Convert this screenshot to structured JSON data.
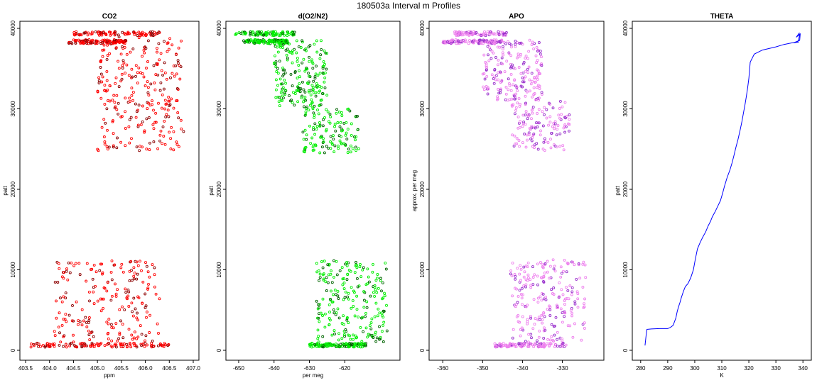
{
  "suptitle": "180503a   Interval m Profiles",
  "chart_data": [
    {
      "type": "scatter",
      "title": "CO2",
      "xlabel": "ppm",
      "ylabel": "patt",
      "xlim": [
        403.5,
        407.0
      ],
      "ylim": [
        0,
        40000
      ],
      "xticks": [
        403.5,
        404.0,
        404.5,
        405.0,
        405.5,
        406.0,
        406.5,
        407.0
      ],
      "xtick_labels": [
        "403.5",
        "404.0",
        "404.5",
        "405.0",
        "405.5",
        "406.0",
        "406.5",
        "407.0"
      ],
      "yticks": [
        0,
        10000,
        20000,
        30000,
        40000
      ],
      "ytick_labels": [
        "0",
        "10000",
        "20000",
        "30000",
        "40000"
      ],
      "colors": [
        "#ff0000",
        "#8b0000"
      ],
      "clusters": [
        {
          "x": [
            404.4,
            405.6
          ],
          "y": [
            38100,
            38600
          ],
          "n": 120
        },
        {
          "x": [
            404.5,
            406.3
          ],
          "y": [
            39100,
            39600
          ],
          "n": 90
        },
        {
          "x": [
            405.0,
            406.8
          ],
          "y": [
            24800,
            39000
          ],
          "n": 260
        },
        {
          "x": [
            403.6,
            406.5
          ],
          "y": [
            400,
            900
          ],
          "n": 120
        },
        {
          "x": [
            404.1,
            406.3
          ],
          "y": [
            1000,
            11200
          ],
          "n": 200
        }
      ]
    },
    {
      "type": "scatter",
      "title": "d(O2/N2)",
      "xlabel": "per meg",
      "ylabel": "patt",
      "xlim": [
        -652,
        -606
      ],
      "ylim": [
        0,
        40000
      ],
      "xticks": [
        -650,
        -640,
        -630,
        -620
      ],
      "xtick_labels": [
        "-650",
        "-640",
        "-630",
        "-620"
      ],
      "yticks": [
        0,
        10000,
        20000,
        30000,
        40000
      ],
      "ytick_labels": [
        "0",
        "10000",
        "20000",
        "30000",
        "40000"
      ],
      "colors": [
        "#00ee00",
        "#006400"
      ],
      "clusters": [
        {
          "x": [
            -649,
            -636
          ],
          "y": [
            38100,
            38600
          ],
          "n": 110
        },
        {
          "x": [
            -651,
            -634
          ],
          "y": [
            39100,
            39600
          ],
          "n": 90
        },
        {
          "x": [
            -640,
            -625
          ],
          "y": [
            30000,
            38500
          ],
          "n": 200
        },
        {
          "x": [
            -632,
            -616
          ],
          "y": [
            24500,
            30000
          ],
          "n": 120
        },
        {
          "x": [
            -630,
            -614
          ],
          "y": [
            400,
            900
          ],
          "n": 120
        },
        {
          "x": [
            -628,
            -608
          ],
          "y": [
            1000,
            11300
          ],
          "n": 220
        }
      ]
    },
    {
      "type": "scatter",
      "title": "APO",
      "xlabel": "",
      "ylabel": "approx. per meg",
      "xlim": [
        -362,
        -321
      ],
      "ylim": [
        0,
        40000
      ],
      "xticks": [
        -360,
        -350,
        -340,
        -330
      ],
      "xtick_labels": [
        "-360",
        "-350",
        "-340",
        "-330"
      ],
      "yticks": [
        0,
        10000,
        20000,
        30000,
        40000
      ],
      "ytick_labels": [
        "0",
        "10000",
        "20000",
        "30000",
        "40000"
      ],
      "colors": [
        "#ee82ee",
        "#9932cc"
      ],
      "clusters": [
        {
          "x": [
            -360,
            -345
          ],
          "y": [
            38100,
            38600
          ],
          "n": 110
        },
        {
          "x": [
            -357,
            -344
          ],
          "y": [
            39100,
            39600
          ],
          "n": 90
        },
        {
          "x": [
            -350,
            -335
          ],
          "y": [
            31000,
            38600
          ],
          "n": 200
        },
        {
          "x": [
            -343,
            -328
          ],
          "y": [
            24800,
            31000
          ],
          "n": 130
        },
        {
          "x": [
            -347,
            -329
          ],
          "y": [
            400,
            900
          ],
          "n": 120
        },
        {
          "x": [
            -343,
            -324
          ],
          "y": [
            1000,
            11300
          ],
          "n": 220
        }
      ]
    },
    {
      "type": "line",
      "title": "THETA",
      "xlabel": "K",
      "ylabel": "patt",
      "xlim": [
        279,
        341
      ],
      "ylim": [
        0,
        40000
      ],
      "xticks": [
        280,
        290,
        300,
        310,
        320,
        330,
        340
      ],
      "xtick_labels": [
        "280",
        "290",
        "300",
        "310",
        "320",
        "330",
        "340"
      ],
      "yticks": [
        0,
        10000,
        20000,
        30000,
        40000
      ],
      "ytick_labels": [
        "0",
        "10000",
        "20000",
        "30000",
        "40000"
      ],
      "colors": [
        "#0000ff"
      ],
      "x": [
        281.6,
        282.0,
        282.3,
        284.0,
        287.0,
        290.0,
        291.0,
        292.0,
        293.0,
        293.5,
        294.0,
        294.5,
        295.0,
        295.8,
        296.5,
        297.5,
        298.5,
        299.5,
        300.2,
        301.0,
        302.0,
        303.0,
        304.0,
        305.0,
        305.8,
        306.5,
        307.5,
        308.5,
        309.5,
        310.3,
        311.0,
        312.0,
        313.0,
        313.8,
        314.5,
        315.2,
        316.0,
        316.8,
        317.5,
        318.0,
        318.5,
        319.0,
        319.5,
        320.0,
        320.5,
        322.0,
        325.0,
        330.0,
        333.0,
        336.0,
        338.0,
        338.5,
        338.7,
        338.6,
        337.5,
        339.0,
        338.8,
        336.5,
        338.5
      ],
      "y": [
        600,
        1800,
        2600,
        2650,
        2700,
        2700,
        2850,
        3100,
        4000,
        4800,
        5400,
        5900,
        6500,
        7300,
        7900,
        8300,
        9000,
        10000,
        11300,
        12600,
        13400,
        14100,
        14700,
        15500,
        16000,
        16600,
        17200,
        17900,
        18600,
        19500,
        20400,
        21500,
        22400,
        23300,
        24200,
        25200,
        26200,
        27400,
        28500,
        29500,
        30400,
        31400,
        32500,
        33800,
        35800,
        36800,
        37300,
        37700,
        38000,
        38200,
        38300,
        38700,
        39100,
        39400,
        38900,
        39300,
        38500,
        38200,
        38300
      ]
    }
  ]
}
